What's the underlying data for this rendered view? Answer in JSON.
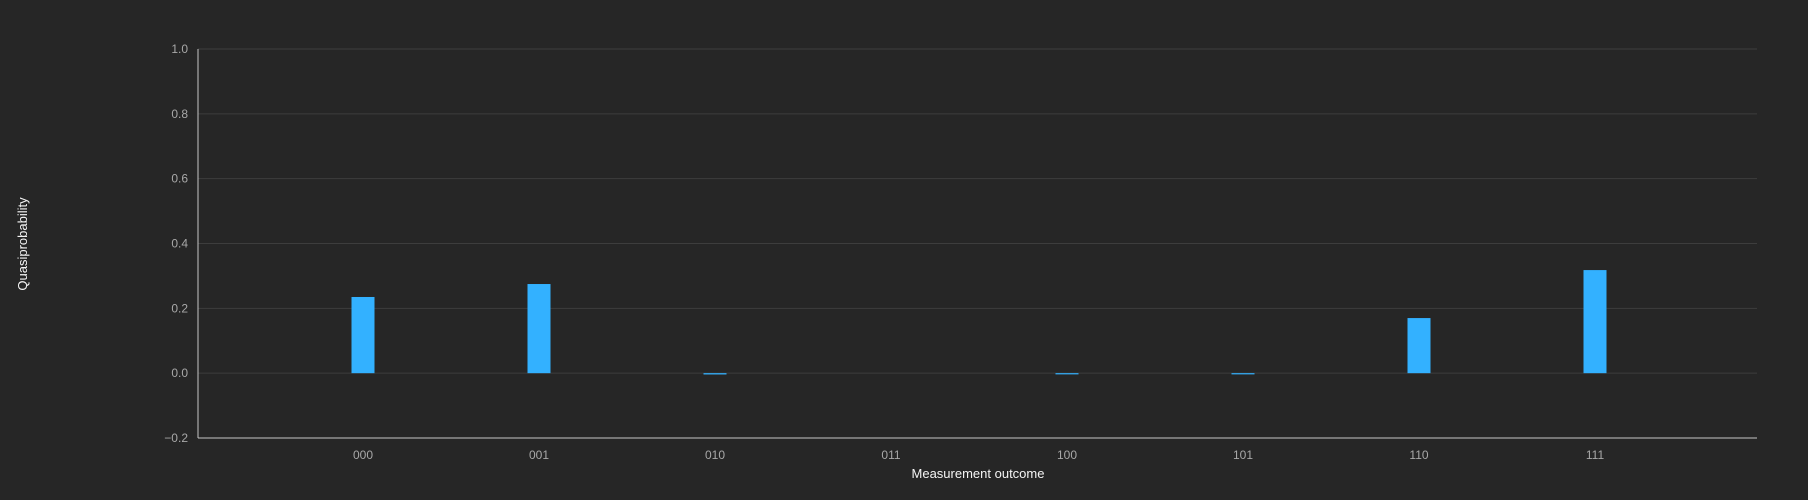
{
  "chart_data": {
    "type": "bar",
    "title": "",
    "xlabel": "Measurement outcome",
    "ylabel": "Quasiprobability",
    "categories": [
      "000",
      "001",
      "010",
      "011",
      "100",
      "101",
      "110",
      "111"
    ],
    "values": [
      0.235,
      0.275,
      -0.004,
      0.0,
      -0.002,
      -0.001,
      0.17,
      0.318
    ],
    "ylim": [
      -0.2,
      1.0
    ],
    "yticks": [
      -0.2,
      0.0,
      0.2,
      0.4,
      0.6,
      0.8,
      1.0
    ],
    "ytick_labels": [
      "−0.2",
      "0.0",
      "0.2",
      "0.4",
      "0.6",
      "0.8",
      "1.0"
    ],
    "grid": true,
    "legend": "none",
    "colors": {
      "background": "#262626",
      "bar": "#33b1ff",
      "grid": "#3d3d3d",
      "axis": "#c6c6c6",
      "tick_text": "#a8a8a8",
      "title_text": "#f4f4f4"
    }
  }
}
